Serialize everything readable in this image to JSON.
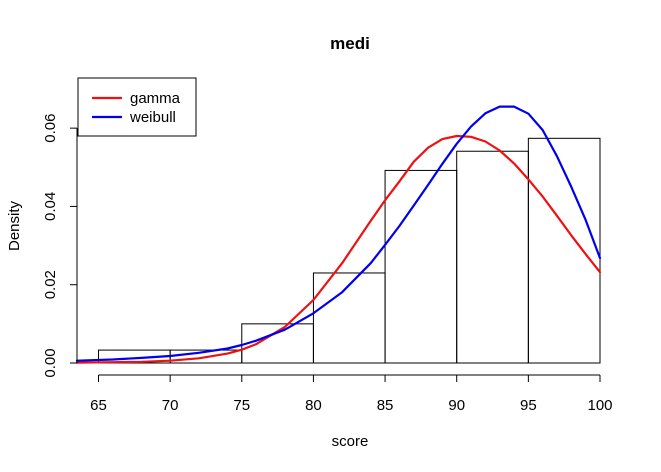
{
  "chart_data": {
    "type": "histogram",
    "title": "medi",
    "xlabel": "score",
    "ylabel": "Density",
    "xlim": [
      63.5,
      100
    ],
    "ylim": [
      0,
      0.07
    ],
    "x_ticks": [
      "65",
      "70",
      "75",
      "80",
      "85",
      "90",
      "95",
      "100"
    ],
    "y_ticks": [
      "0.00",
      "0.02",
      "0.04",
      "0.06"
    ],
    "bins": [
      {
        "x0": 65,
        "x1": 70,
        "density": 0.0033
      },
      {
        "x0": 70,
        "x1": 75,
        "density": 0.0033
      },
      {
        "x0": 75,
        "x1": 80,
        "density": 0.01
      },
      {
        "x0": 80,
        "x1": 85,
        "density": 0.023
      },
      {
        "x0": 85,
        "x1": 90,
        "density": 0.0492
      },
      {
        "x0": 90,
        "x1": 95,
        "density": 0.0541
      },
      {
        "x0": 95,
        "x1": 100,
        "density": 0.0574
      }
    ],
    "series": [
      {
        "name": "gamma",
        "color": "#ee1111",
        "x": [
          63.5,
          66,
          68,
          70,
          72,
          74,
          75,
          76,
          78,
          80,
          82,
          84,
          85,
          86,
          87,
          88,
          89,
          90,
          91,
          92,
          93,
          94,
          95,
          96,
          97,
          98,
          99,
          100
        ],
        "y": [
          0.0001,
          0.0002,
          0.0003,
          0.0006,
          0.0012,
          0.0024,
          0.0034,
          0.0048,
          0.0092,
          0.0161,
          0.0255,
          0.0363,
          0.0416,
          0.0464,
          0.0514,
          0.055,
          0.0572,
          0.058,
          0.0578,
          0.0566,
          0.0543,
          0.051,
          0.0469,
          0.0425,
          0.0376,
          0.0326,
          0.0278,
          0.0232
        ]
      },
      {
        "name": "weibull",
        "color": "#0000ee",
        "x": [
          63.5,
          66,
          68,
          70,
          72,
          74,
          75,
          76,
          78,
          80,
          82,
          84,
          85,
          86,
          87,
          88,
          89,
          90,
          91,
          92,
          93,
          94,
          95,
          96,
          97,
          98,
          99,
          100
        ],
        "y": [
          0.0006,
          0.0009,
          0.0013,
          0.0018,
          0.0026,
          0.0037,
          0.0046,
          0.0057,
          0.0085,
          0.0127,
          0.0181,
          0.0255,
          0.0302,
          0.035,
          0.0402,
          0.0455,
          0.0509,
          0.056,
          0.0604,
          0.0638,
          0.0655,
          0.0655,
          0.0637,
          0.0595,
          0.0528,
          0.045,
          0.0365,
          0.0268
        ]
      }
    ],
    "legend": {
      "position": "top-left",
      "entries": [
        {
          "label": "gamma",
          "color": "#ee1111"
        },
        {
          "label": "weibull",
          "color": "#0000ee"
        }
      ]
    }
  }
}
